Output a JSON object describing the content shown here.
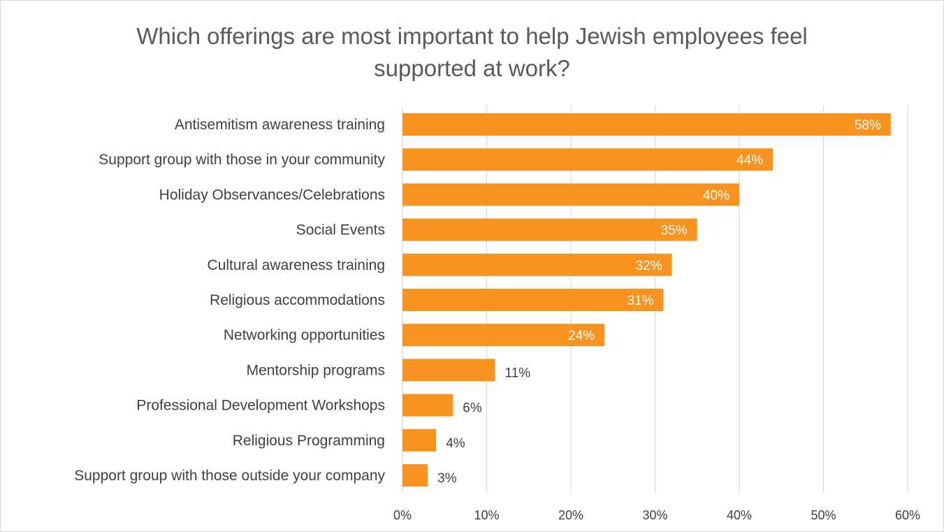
{
  "chart_data": {
    "type": "bar",
    "orientation": "horizontal",
    "title": "Which offerings are most important to help Jewish employees feel\nsupported at work?",
    "categories": [
      "Antisemitism awareness training",
      "Support group with those in your community",
      "Holiday Observances/Celebrations",
      "Social Events",
      "Cultural awareness training",
      "Religious accommodations",
      "Networking opportunities",
      "Mentorship programs",
      "Professional Development Workshops",
      "Religious Programming",
      "Support group with those outside your company"
    ],
    "values": [
      58,
      44,
      40,
      35,
      32,
      31,
      24,
      11,
      6,
      4,
      3
    ],
    "data_labels": [
      "58%",
      "44%",
      "40%",
      "35%",
      "32%",
      "31%",
      "24%",
      "11%",
      "6%",
      "4%",
      "3%"
    ],
    "xlim": [
      0,
      60
    ],
    "x_ticks": [
      0,
      10,
      20,
      30,
      40,
      50,
      60
    ],
    "x_tick_labels": [
      "0%",
      "10%",
      "20%",
      "30%",
      "40%",
      "50%",
      "60%"
    ],
    "xlabel": "",
    "ylabel": "",
    "grid": true,
    "legend": "none",
    "colors": {
      "bar": "#F7931E",
      "grid": "#d9d9d9",
      "title": "#595959",
      "text": "#404040",
      "label_inside": "#ffffff"
    }
  }
}
